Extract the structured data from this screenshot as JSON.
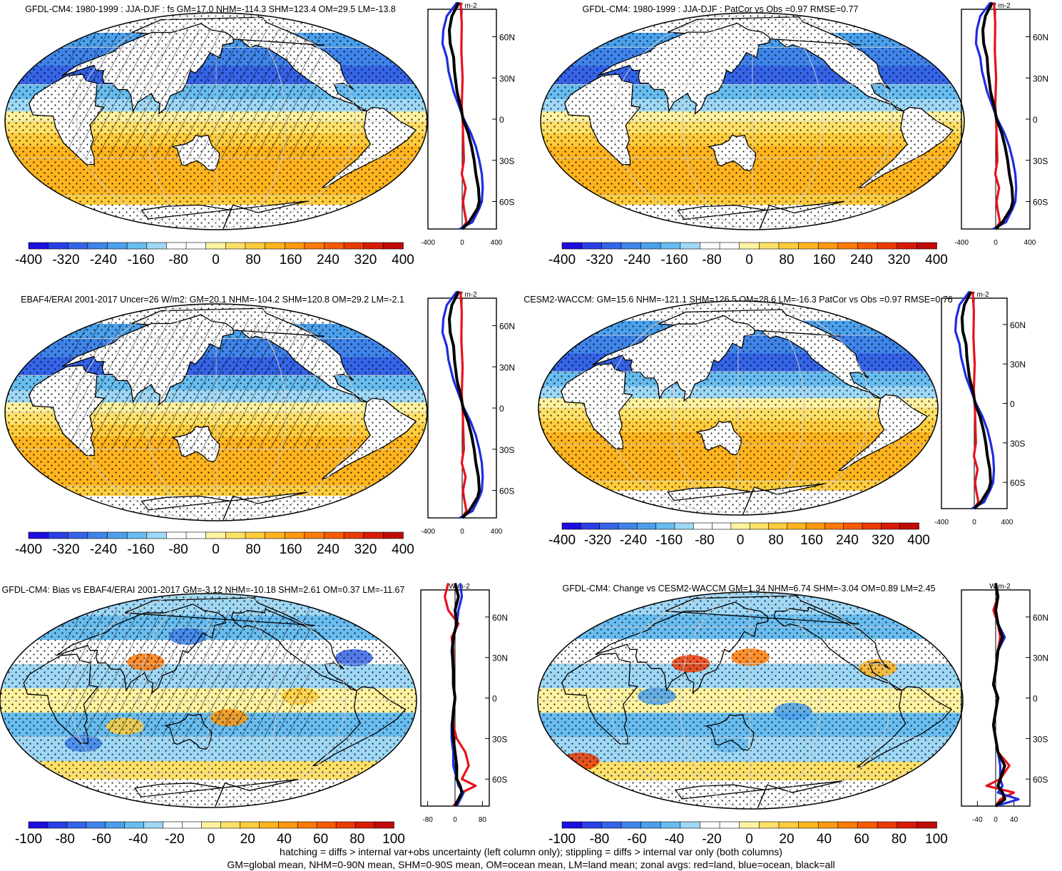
{
  "chart_data": [
    {
      "type": "heatmap",
      "title": "GFDL-CM4: 1980-1999 : JJA-DJF : fs GM=17.0 NHM=-114.3 SHM=123.4 OM=29.5 LM=-13.8",
      "colorbar": {
        "labels": [
          "-400",
          "-320",
          "-240",
          "-160",
          "-80",
          "0",
          "80",
          "160",
          "240",
          "320",
          "400"
        ],
        "range": [
          -400,
          400
        ]
      },
      "zonal_plot": {
        "unit_label": "W m-2",
        "xlim": [
          -400,
          400
        ],
        "xticks": [
          "-400",
          "0",
          "400"
        ],
        "lat_ticks": [
          "60N",
          "30N",
          "0",
          "30S",
          "60S"
        ],
        "series": [
          {
            "color": "#e8121e",
            "lat": [
              85,
              70,
              50,
              30,
              10,
              0,
              -10,
              -20,
              -30,
              -40,
              -50,
              -60,
              -65,
              -75,
              -80
            ],
            "values": [
              -20,
              -5,
              -10,
              5,
              -5,
              5,
              10,
              15,
              20,
              -5,
              40,
              10,
              20,
              50,
              -5
            ]
          },
          {
            "color": "#1f2de0",
            "lat": [
              85,
              75,
              65,
              55,
              45,
              35,
              20,
              10,
              0,
              -10,
              -20,
              -30,
              -40,
              -50,
              -60,
              -65,
              -70,
              -75,
              -80
            ],
            "values": [
              -60,
              -180,
              -220,
              -230,
              -180,
              -160,
              -100,
              -40,
              20,
              100,
              160,
              200,
              230,
              240,
              230,
              200,
              160,
              120,
              -30
            ]
          },
          {
            "color": "#000000",
            "lat": [
              85,
              75,
              65,
              55,
              45,
              35,
              20,
              10,
              0,
              -10,
              -20,
              -30,
              -40,
              -50,
              -60,
              -65,
              -70,
              -75,
              -80
            ],
            "values": [
              -40,
              -120,
              -150,
              -140,
              -100,
              -90,
              -60,
              -20,
              10,
              70,
              110,
              140,
              160,
              190,
              200,
              180,
              130,
              80,
              0
            ]
          }
        ]
      }
    },
    {
      "type": "heatmap",
      "title": "GFDL-CM4: 1980-1999 : JJA-DJF : PatCor vs Obs =0.97 RMSE=0.77",
      "colorbar": {
        "labels": [
          "-400",
          "-320",
          "-240",
          "-160",
          "-80",
          "0",
          "80",
          "160",
          "240",
          "320",
          "400"
        ],
        "range": [
          -400,
          400
        ]
      },
      "zonal_plot": {
        "unit_label": "W m-2",
        "xlim": [
          -400,
          400
        ],
        "xticks": [
          "-400",
          "0",
          "400"
        ],
        "lat_ticks": [
          "60N",
          "30N",
          "0",
          "30S",
          "60S"
        ],
        "series": [
          {
            "color": "#e8121e",
            "lat": [
              85,
              70,
              50,
              30,
              10,
              0,
              -10,
              -20,
              -30,
              -40,
              -50,
              -60,
              -65,
              -75,
              -80
            ],
            "values": [
              -20,
              -5,
              -10,
              5,
              -5,
              5,
              10,
              15,
              20,
              -5,
              40,
              10,
              20,
              50,
              -5
            ]
          },
          {
            "color": "#1f2de0",
            "lat": [
              85,
              75,
              65,
              55,
              45,
              35,
              20,
              10,
              0,
              -10,
              -20,
              -30,
              -40,
              -50,
              -60,
              -65,
              -70,
              -75,
              -80
            ],
            "values": [
              -60,
              -180,
              -220,
              -230,
              -180,
              -160,
              -100,
              -40,
              20,
              100,
              160,
              200,
              230,
              240,
              230,
              200,
              160,
              120,
              -30
            ]
          },
          {
            "color": "#000000",
            "lat": [
              85,
              75,
              65,
              55,
              45,
              35,
              20,
              10,
              0,
              -10,
              -20,
              -30,
              -40,
              -50,
              -60,
              -65,
              -70,
              -75,
              -80
            ],
            "values": [
              -40,
              -120,
              -150,
              -140,
              -100,
              -90,
              -60,
              -20,
              10,
              70,
              110,
              140,
              160,
              190,
              200,
              180,
              130,
              80,
              0
            ]
          }
        ]
      }
    },
    {
      "type": "heatmap",
      "title": "EBAF4/ERAI 2001-2017 Uncer=26 W/m2: GM=20.1 NHM=-104.2 SHM=120.8 OM=29.2 LM=-2.1",
      "colorbar": {
        "labels": [
          "-400",
          "-320",
          "-240",
          "-160",
          "-80",
          "0",
          "80",
          "160",
          "240",
          "320",
          "400"
        ],
        "range": [
          -400,
          400
        ]
      },
      "zonal_plot": {
        "unit_label": "W m-2",
        "xlim": [
          -400,
          400
        ],
        "xticks": [
          "-400",
          "0",
          "400"
        ],
        "lat_ticks": [
          "60N",
          "30N",
          "0",
          "30S",
          "60S"
        ],
        "series": [
          {
            "color": "#e8121e",
            "lat": [
              85,
              70,
              50,
              30,
              10,
              0,
              -10,
              -20,
              -30,
              -40,
              -50,
              -60,
              -65,
              -75,
              -80
            ],
            "values": [
              -20,
              -5,
              -10,
              5,
              -5,
              5,
              10,
              15,
              20,
              -5,
              40,
              10,
              20,
              50,
              -5
            ]
          },
          {
            "color": "#1f2de0",
            "lat": [
              85,
              75,
              65,
              55,
              45,
              35,
              20,
              10,
              0,
              -10,
              -20,
              -30,
              -40,
              -50,
              -60,
              -65,
              -70,
              -75,
              -80
            ],
            "values": [
              -60,
              -180,
              -220,
              -230,
              -180,
              -160,
              -100,
              -40,
              20,
              100,
              160,
              200,
              230,
              240,
              230,
              200,
              160,
              120,
              -30
            ]
          },
          {
            "color": "#000000",
            "lat": [
              85,
              75,
              65,
              55,
              45,
              35,
              20,
              10,
              0,
              -10,
              -20,
              -30,
              -40,
              -50,
              -60,
              -65,
              -70,
              -75,
              -80
            ],
            "values": [
              -40,
              -120,
              -150,
              -140,
              -100,
              -90,
              -60,
              -20,
              10,
              70,
              110,
              140,
              160,
              190,
              200,
              180,
              130,
              80,
              0
            ]
          }
        ]
      }
    },
    {
      "type": "heatmap",
      "title": "CESM2-WACCM: GM=15.6 NHM=-121.1 SHM=126.5 OM=28.6 LM=-16.3 PatCor vs Obs =0.97 RMSE=0.76",
      "colorbar": {
        "labels": [
          "-400",
          "-320",
          "-240",
          "-160",
          "-80",
          "0",
          "80",
          "160",
          "240",
          "320",
          "400"
        ],
        "range": [
          -400,
          400
        ]
      },
      "zonal_plot": {
        "unit_label": "W m-2",
        "xlim": [
          -400,
          400
        ],
        "xticks": [
          "-400",
          "0",
          "400"
        ],
        "lat_ticks": [
          "60N",
          "30N",
          "0",
          "30S",
          "60S"
        ],
        "series": [
          {
            "color": "#e8121e",
            "lat": [
              85,
              70,
              50,
              30,
              10,
              0,
              -10,
              -20,
              -30,
              -40,
              -50,
              -60,
              -65,
              -75,
              -80
            ],
            "values": [
              -20,
              -5,
              -10,
              5,
              -5,
              5,
              10,
              15,
              20,
              -5,
              40,
              10,
              20,
              50,
              -5
            ]
          },
          {
            "color": "#1f2de0",
            "lat": [
              85,
              75,
              65,
              55,
              45,
              35,
              20,
              10,
              0,
              -10,
              -20,
              -30,
              -40,
              -50,
              -60,
              -65,
              -70,
              -75,
              -80
            ],
            "values": [
              -60,
              -180,
              -220,
              -230,
              -180,
              -160,
              -100,
              -40,
              20,
              100,
              160,
              200,
              230,
              240,
              230,
              200,
              160,
              120,
              -30
            ]
          },
          {
            "color": "#000000",
            "lat": [
              85,
              75,
              65,
              55,
              45,
              35,
              20,
              10,
              0,
              -10,
              -20,
              -30,
              -40,
              -50,
              -60,
              -65,
              -70,
              -75,
              -80
            ],
            "values": [
              -40,
              -120,
              -150,
              -140,
              -100,
              -90,
              -60,
              -20,
              10,
              70,
              110,
              140,
              160,
              190,
              200,
              180,
              130,
              80,
              0
            ]
          }
        ]
      }
    },
    {
      "type": "heatmap",
      "title": "GFDL-CM4: Bias vs EBAF4/ERAI 2001-2017 GM=-3.12 NHM=-10.18 SHM=2.61 OM=0.37 LM=-11.67",
      "colorbar": {
        "labels": [
          "-100",
          "-80",
          "-60",
          "-40",
          "-20",
          "0",
          "20",
          "40",
          "60",
          "80",
          "100"
        ],
        "range": [
          -100,
          100
        ]
      },
      "zonal_plot": {
        "unit_label": "W m-2",
        "xlim": [
          -100,
          100
        ],
        "xticks": [
          "-80",
          "0",
          "80"
        ],
        "lat_ticks": [
          "60N",
          "30N",
          "0",
          "30S",
          "60S"
        ],
        "series": [
          {
            "color": "#e8121e",
            "lat": [
              85,
              75,
              65,
              55,
              45,
              35,
              20,
              10,
              0,
              -10,
              -20,
              -30,
              -40,
              -50,
              -60,
              -65,
              -70,
              -75,
              -80
            ],
            "values": [
              -20,
              -30,
              -20,
              10,
              -10,
              -5,
              -5,
              -5,
              0,
              -5,
              -5,
              5,
              30,
              40,
              20,
              60,
              20,
              10,
              -5
            ]
          },
          {
            "color": "#1f2de0",
            "lat": [
              85,
              75,
              65,
              55,
              45,
              35,
              20,
              10,
              0,
              -10,
              -20,
              -30,
              -40,
              -50,
              -60,
              -65,
              -70,
              -75,
              -80
            ],
            "values": [
              15,
              20,
              10,
              5,
              -5,
              -10,
              -5,
              -5,
              0,
              -5,
              -10,
              -10,
              -5,
              -5,
              5,
              10,
              25,
              15,
              5
            ]
          },
          {
            "color": "#000000",
            "lat": [
              85,
              75,
              65,
              55,
              45,
              35,
              20,
              10,
              0,
              -10,
              -20,
              -30,
              -40,
              -50,
              -60,
              -65,
              -70,
              -75,
              -80
            ],
            "values": [
              0,
              10,
              0,
              5,
              -5,
              -8,
              -5,
              -5,
              0,
              -5,
              -8,
              -5,
              0,
              5,
              5,
              15,
              20,
              10,
              0
            ]
          }
        ]
      }
    },
    {
      "type": "heatmap",
      "title": "GFDL-CM4: Change vs CESM2-WACCM GM=1.34 NHM=6.74 SHM=-3.04 OM=0.89 LM=2.45",
      "colorbar": {
        "labels": [
          "-100",
          "-80",
          "-60",
          "-40",
          "-20",
          "0",
          "20",
          "40",
          "60",
          "80",
          "100"
        ],
        "range": [
          -100,
          100
        ]
      },
      "zonal_plot": {
        "unit_label": "W m-2",
        "xlim": [
          -75,
          75
        ],
        "xticks": [
          "-40",
          "0",
          "40"
        ],
        "lat_ticks": [
          "60N",
          "30N",
          "0",
          "30S",
          "60S"
        ],
        "series": [
          {
            "color": "#e8121e",
            "lat": [
              85,
              75,
              65,
              55,
              45,
              35,
              20,
              10,
              0,
              -10,
              -20,
              -30,
              -40,
              -50,
              -60,
              -65,
              -70,
              -75,
              -80
            ],
            "values": [
              0,
              5,
              -5,
              5,
              10,
              5,
              0,
              -5,
              5,
              0,
              -5,
              0,
              5,
              30,
              10,
              -20,
              40,
              10,
              0
            ]
          },
          {
            "color": "#1f2de0",
            "lat": [
              85,
              75,
              65,
              55,
              45,
              35,
              20,
              10,
              0,
              -10,
              -20,
              -30,
              -40,
              -50,
              -60,
              -65,
              -70,
              -75,
              -80
            ],
            "values": [
              0,
              5,
              0,
              5,
              20,
              5,
              0,
              -5,
              5,
              0,
              -5,
              0,
              5,
              10,
              10,
              15,
              5,
              50,
              0
            ]
          },
          {
            "color": "#000000",
            "lat": [
              85,
              75,
              65,
              55,
              45,
              35,
              20,
              10,
              0,
              -10,
              -20,
              -30,
              -40,
              -50,
              -60,
              -65,
              -70,
              -75,
              -80
            ],
            "values": [
              0,
              5,
              0,
              5,
              15,
              5,
              0,
              -5,
              5,
              0,
              -5,
              0,
              5,
              20,
              10,
              5,
              15,
              20,
              0
            ]
          }
        ]
      }
    }
  ],
  "footnote": {
    "line1": "hatching = diffs > internal var+obs uncertainty (left column only); stippling = diffs > internal var only (both columns)",
    "line2": "GM=global mean, NHM=0-90N mean, SHM=0-90S mean, OM=ocean mean, LM=land mean; zonal avgs: red=land, blue=ocean, black=all"
  }
}
